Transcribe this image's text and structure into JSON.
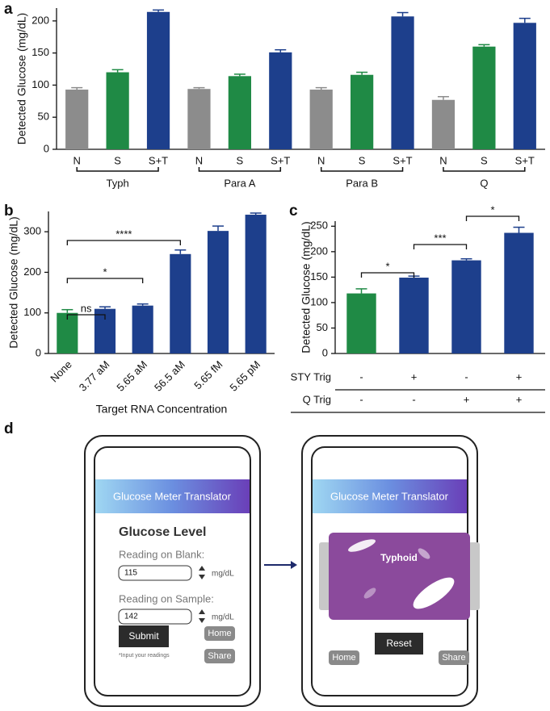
{
  "chart_data": [
    {
      "type": "bar",
      "label": "a",
      "ylabel": "Detected Glucose (mg/dL)",
      "categories": [
        "N",
        "S",
        "S+T",
        "N",
        "S",
        "S+T",
        "N",
        "S",
        "S+T",
        "N",
        "S",
        "S+T"
      ],
      "groups": [
        "Typh",
        "Para A",
        "Para B",
        "Q"
      ],
      "values": [
        93,
        120,
        214,
        94,
        114,
        151,
        93,
        116,
        207,
        77,
        160,
        197
      ],
      "errors": [
        3,
        4,
        3,
        2,
        3,
        4,
        3,
        4,
        6,
        5,
        3,
        7
      ],
      "colors": [
        "#8c8c8c",
        "#1f8a45",
        "#1d3f8c",
        "#8c8c8c",
        "#1f8a45",
        "#1d3f8c",
        "#8c8c8c",
        "#1f8a45",
        "#1d3f8c",
        "#8c8c8c",
        "#1f8a45",
        "#1d3f8c"
      ],
      "ylim": [
        0,
        220
      ],
      "yticks": [
        0,
        50,
        100,
        150,
        200
      ]
    },
    {
      "type": "bar",
      "label": "b",
      "ylabel": "Detected Glucose (mg/dL)",
      "xlabel": "Target RNA Concentration",
      "categories": [
        "None",
        "3.77 aM",
        "5.65 aM",
        "56.5 aM",
        "5.65 fM",
        "5.65 pM"
      ],
      "values": [
        100,
        110,
        118,
        245,
        302,
        342
      ],
      "errors": [
        8,
        5,
        4,
        10,
        12,
        4
      ],
      "colors": [
        "#1f8a45",
        "#1d3f8c",
        "#1d3f8c",
        "#1d3f8c",
        "#1d3f8c",
        "#1d3f8c"
      ],
      "ylim": [
        0,
        350
      ],
      "yticks": [
        0,
        100,
        200,
        300
      ],
      "annotations": [
        "ns",
        "*",
        "****"
      ]
    },
    {
      "type": "bar",
      "label": "c",
      "ylabel": "Detected Glucose (mg/dL)",
      "values": [
        118,
        149,
        183,
        237
      ],
      "errors": [
        9,
        3,
        3,
        11
      ],
      "colors": [
        "#1f8a45",
        "#1d3f8c",
        "#1d3f8c",
        "#1d3f8c"
      ],
      "ylim": [
        0,
        260
      ],
      "yticks": [
        0,
        50,
        100,
        150,
        200,
        250
      ],
      "annotations": [
        "*",
        "***",
        "*"
      ],
      "rows": [
        {
          "label": "STY Trig",
          "cells": [
            "-",
            "+",
            "-",
            "+"
          ]
        },
        {
          "label": "Q Trig",
          "cells": [
            "-",
            "-",
            "+",
            "+"
          ]
        }
      ]
    }
  ],
  "panel_d": {
    "label": "d"
  },
  "app_screens": [
    {
      "header": "Glucose Meter Translator",
      "heading": "Glucose Level",
      "fields": [
        {
          "label": "Reading on Blank:",
          "value": 115,
          "unit": "mg/dL"
        },
        {
          "label": "Reading on Sample:",
          "value": 142,
          "unit": "mg/dL"
        }
      ],
      "buttons": [
        "Submit",
        "Home",
        "Share"
      ],
      "note": "*Input your readings"
    },
    {
      "header": "Glucose Meter Translator",
      "result": "Typhoid",
      "buttons": [
        "Reset",
        "Home",
        "Share"
      ]
    }
  ]
}
